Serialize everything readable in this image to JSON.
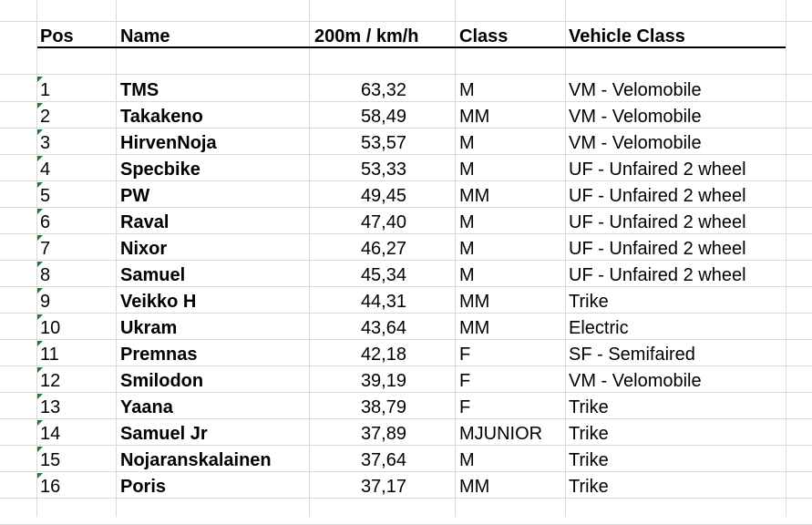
{
  "header": {
    "pos": "Pos",
    "name": "Name",
    "speed": "200m / km/h",
    "class": "Class",
    "vehicle_class": "Vehicle Class"
  },
  "rows": [
    {
      "pos": "1",
      "name": "TMS",
      "speed": "63,32",
      "class": "M",
      "vehicle_class": "VM - Velomobile"
    },
    {
      "pos": "2",
      "name": "Takakeno",
      "speed": "58,49",
      "class": "MM",
      "vehicle_class": "VM - Velomobile"
    },
    {
      "pos": "3",
      "name": "HirvenNoja",
      "speed": "53,57",
      "class": "M",
      "vehicle_class": "VM - Velomobile"
    },
    {
      "pos": "4",
      "name": "Specbike",
      "speed": "53,33",
      "class": "M",
      "vehicle_class": "UF - Unfaired 2 wheel"
    },
    {
      "pos": "5",
      "name": "PW",
      "speed": "49,45",
      "class": "MM",
      "vehicle_class": "UF - Unfaired 2 wheel"
    },
    {
      "pos": "6",
      "name": "Raval",
      "speed": "47,40",
      "class": "M",
      "vehicle_class": "UF - Unfaired 2 wheel"
    },
    {
      "pos": "7",
      "name": "Nixor",
      "speed": "46,27",
      "class": "M",
      "vehicle_class": "UF - Unfaired 2 wheel"
    },
    {
      "pos": "8",
      "name": "Samuel",
      "speed": "45,34",
      "class": "M",
      "vehicle_class": "UF - Unfaired 2 wheel"
    },
    {
      "pos": "9",
      "name": "Veikko H",
      "speed": "44,31",
      "class": "MM",
      "vehicle_class": "Trike"
    },
    {
      "pos": "10",
      "name": "Ukram",
      "speed": "43,64",
      "class": "MM",
      "vehicle_class": "Electric"
    },
    {
      "pos": "11",
      "name": "Premnas",
      "speed": "42,18",
      "class": "F",
      "vehicle_class": "SF - Semifaired"
    },
    {
      "pos": "12",
      "name": "Smilodon",
      "speed": "39,19",
      "class": "F",
      "vehicle_class": "VM - Velomobile"
    },
    {
      "pos": "13",
      "name": "Yaana",
      "speed": "38,79",
      "class": "F",
      "vehicle_class": "Trike"
    },
    {
      "pos": "14",
      "name": "Samuel Jr",
      "speed": "37,89",
      "class": "MJUNIOR",
      "vehicle_class": "Trike"
    },
    {
      "pos": "15",
      "name": "Nojaranskalainen",
      "speed": "37,64",
      "class": "M",
      "vehicle_class": "Trike"
    },
    {
      "pos": "16",
      "name": "Poris",
      "speed": "37,17",
      "class": "MM",
      "vehicle_class": "Trike"
    }
  ],
  "colors": {
    "gridline": "#dadada",
    "header_rule": "#000000",
    "cell_marker": "#1e7b34"
  }
}
